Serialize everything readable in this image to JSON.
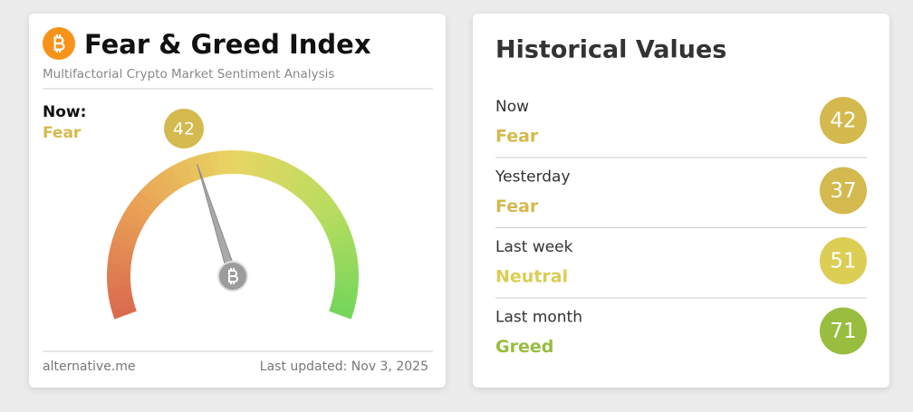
{
  "fear_greed_card": {
    "title": "Fear & Greed Index",
    "subtitle": "Multifactorial Crypto Market Sentiment Analysis",
    "now_label": "Now:",
    "classification": "Fear",
    "value": 42,
    "color": "#d4b94f",
    "source": "alternative.me",
    "last_updated": "Last updated: Nov 3, 2025"
  },
  "historical_card": {
    "title": "Historical Values",
    "rows": [
      {
        "label": "Now",
        "classification": "Fear",
        "value": 42,
        "color": "#d4b94f"
      },
      {
        "label": "Yesterday",
        "classification": "Fear",
        "value": 37,
        "color": "#d4b94f"
      },
      {
        "label": "Last week",
        "classification": "Neutral",
        "value": 51,
        "color": "#dccd55"
      },
      {
        "label": "Last month",
        "classification": "Greed",
        "value": 71,
        "color": "#98bd3f"
      }
    ]
  }
}
